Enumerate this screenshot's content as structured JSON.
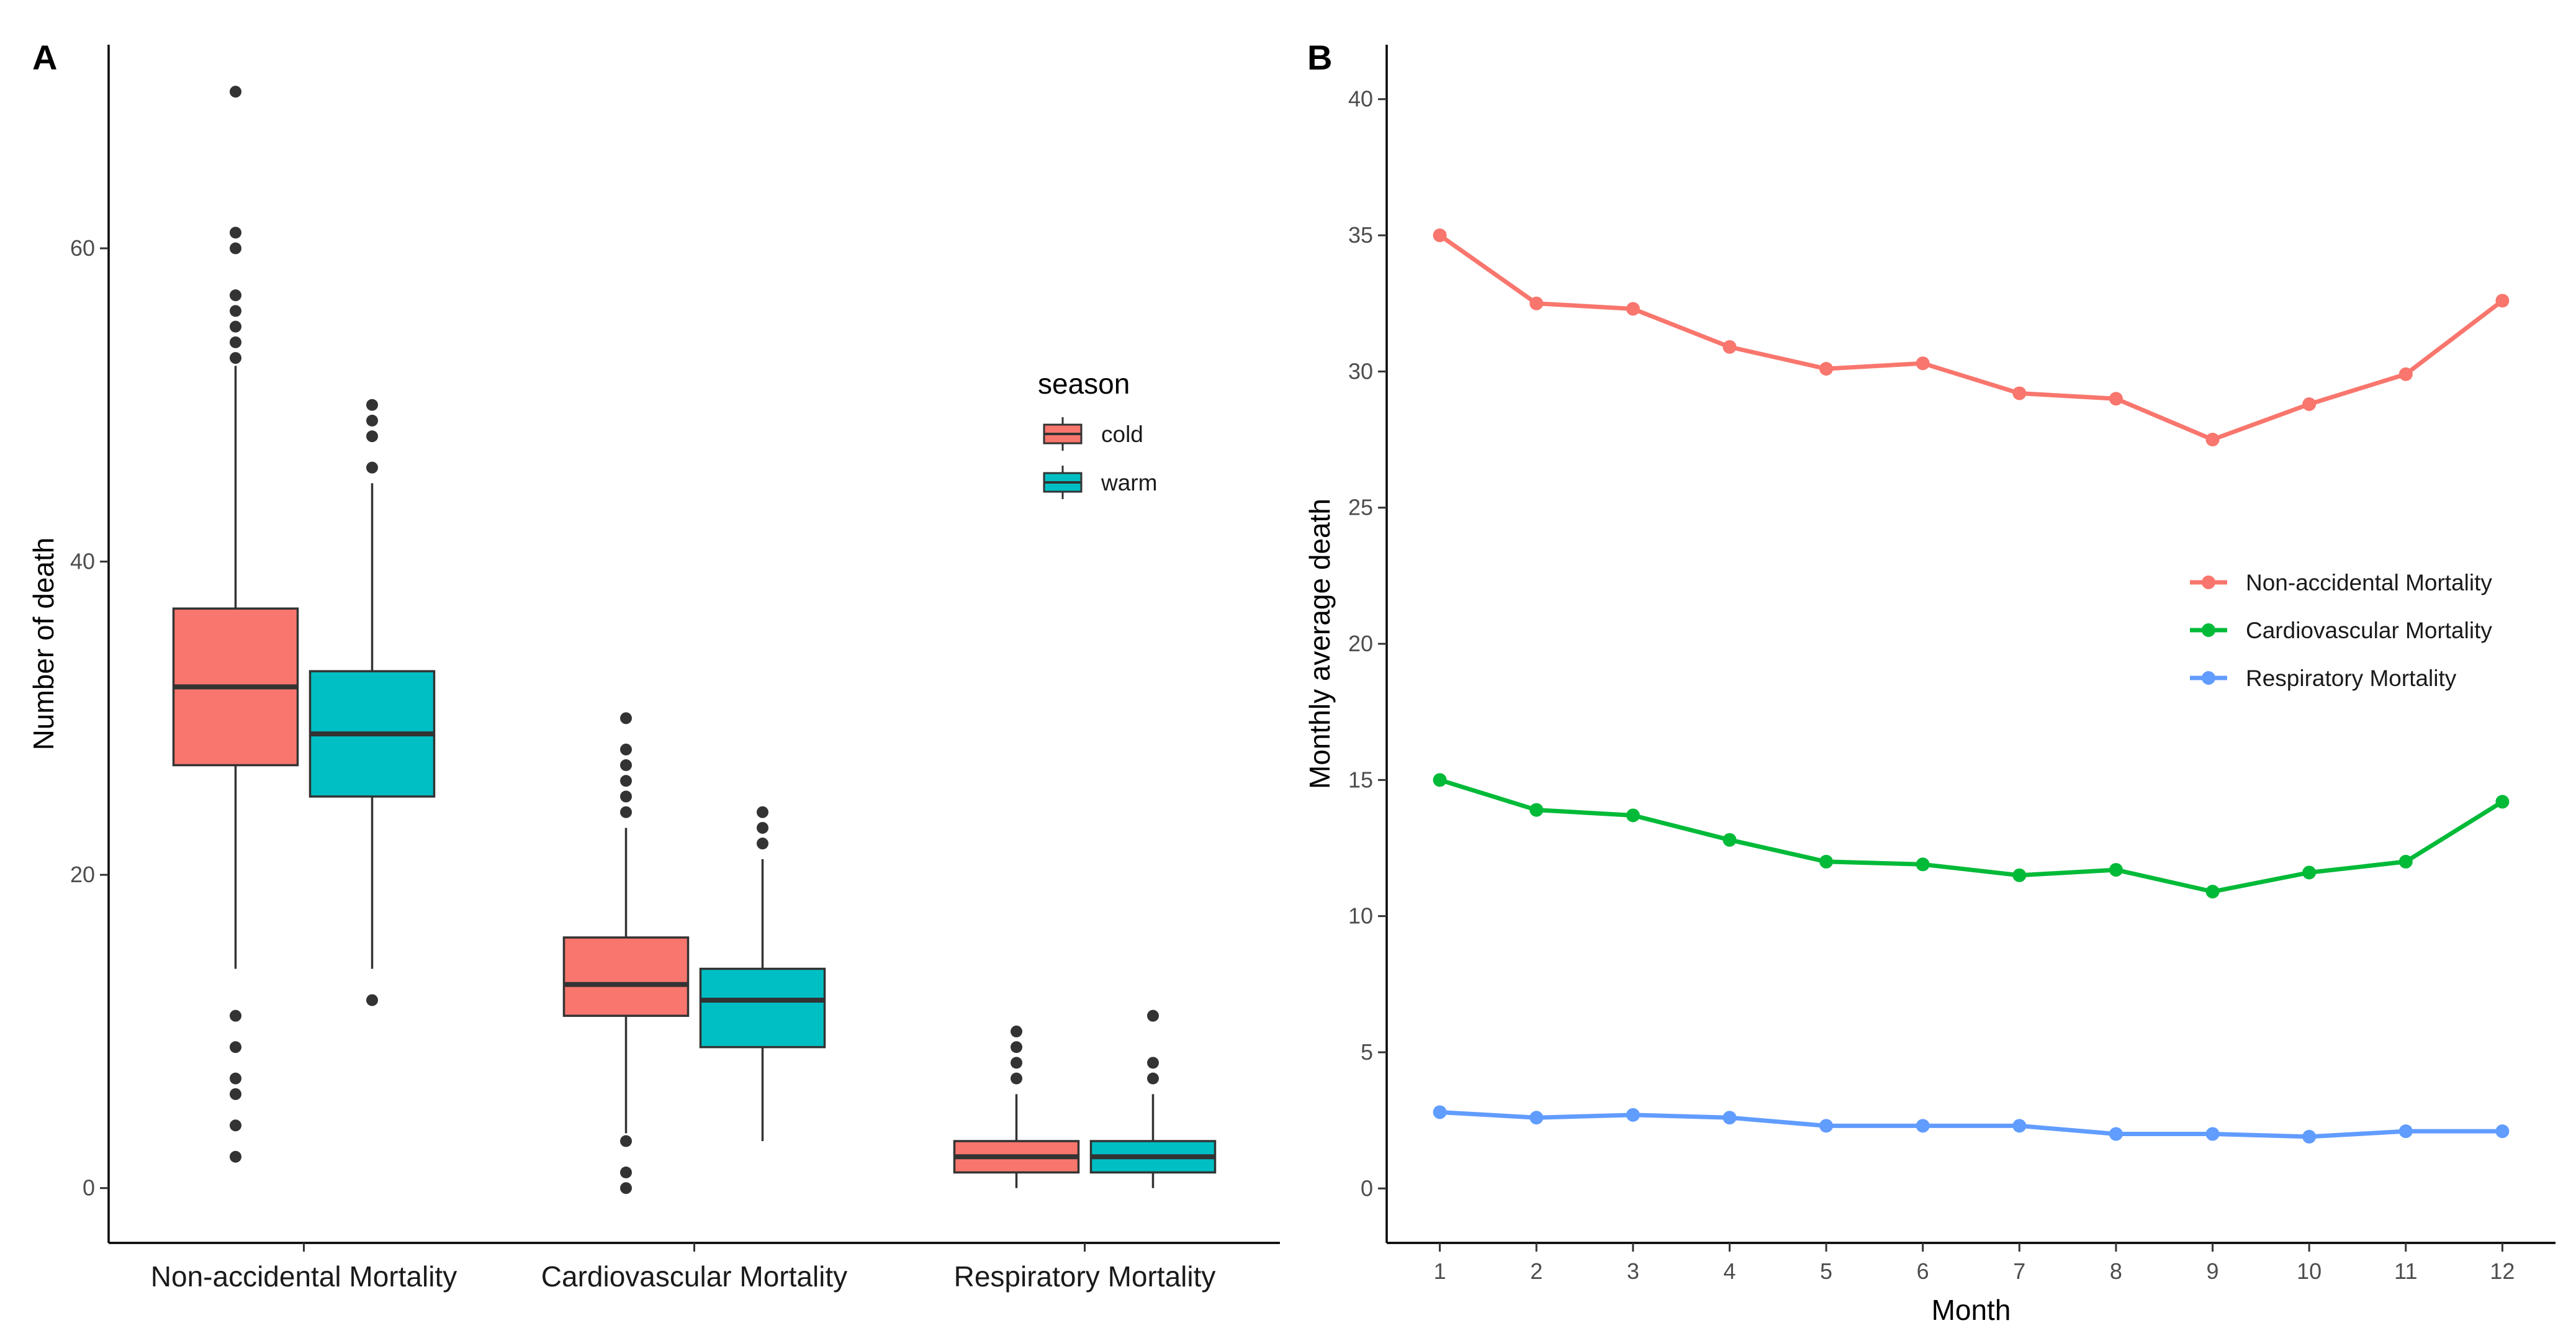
{
  "chart_data": [
    {
      "panel": "A",
      "type": "box",
      "title": "",
      "xlabel": "",
      "ylabel": "Number of death",
      "ylim": [
        -3.5,
        73
      ],
      "yticks": [
        0,
        20,
        40,
        60
      ],
      "grid": false,
      "legend": {
        "title": "season",
        "position": "right",
        "entries": [
          "cold",
          "warm"
        ]
      },
      "series_colors": {
        "cold": "#F8766D",
        "warm": "#00BFC4"
      },
      "categories": [
        "Non-accidental Mortality",
        "Cardiovascular Mortality",
        "Respiratory Mortality"
      ],
      "boxes": [
        {
          "category": "Non-accidental Mortality",
          "season": "cold",
          "q1": 27,
          "median": 32,
          "q3": 37,
          "whisker_low": 14,
          "whisker_high": 52.5,
          "outliers": [
            70,
            61,
            60,
            57,
            56,
            55,
            54,
            53,
            11,
            9,
            7,
            6,
            4,
            2
          ]
        },
        {
          "category": "Non-accidental Mortality",
          "season": "warm",
          "q1": 25,
          "median": 29,
          "q3": 33,
          "whisker_low": 14,
          "whisker_high": 45,
          "outliers": [
            50,
            49,
            48,
            46,
            12
          ]
        },
        {
          "category": "Cardiovascular Mortality",
          "season": "cold",
          "q1": 11,
          "median": 13,
          "q3": 16,
          "whisker_low": 3.5,
          "whisker_high": 23,
          "outliers": [
            30,
            28,
            27,
            26,
            25,
            24,
            3,
            1,
            0
          ]
        },
        {
          "category": "Cardiovascular Mortality",
          "season": "warm",
          "q1": 9,
          "median": 12,
          "q3": 14,
          "whisker_low": 3,
          "whisker_high": 21,
          "outliers": [
            24,
            23,
            22
          ]
        },
        {
          "category": "Respiratory Mortality",
          "season": "cold",
          "q1": 1,
          "median": 2,
          "q3": 3,
          "whisker_low": 0,
          "whisker_high": 6,
          "outliers": [
            10,
            9,
            8,
            7
          ]
        },
        {
          "category": "Respiratory Mortality",
          "season": "warm",
          "q1": 1,
          "median": 2,
          "q3": 3,
          "whisker_low": 0,
          "whisker_high": 6,
          "outliers": [
            11,
            8,
            7
          ]
        }
      ]
    },
    {
      "panel": "B",
      "type": "line",
      "title": "",
      "xlabel": "Month",
      "ylabel": "Monthly average death",
      "xlim": [
        0.45,
        12.55
      ],
      "ylim": [
        -2,
        42
      ],
      "yticks": [
        0,
        5,
        10,
        15,
        20,
        25,
        30,
        35,
        40
      ],
      "grid": false,
      "x": [
        1,
        2,
        3,
        4,
        5,
        6,
        7,
        8,
        9,
        10,
        11,
        12
      ],
      "legend": {
        "title": "",
        "position": "right",
        "entries": [
          "Non-accidental Mortality",
          "Cardiovascular Mortality",
          "Respiratory Mortality"
        ]
      },
      "series": [
        {
          "name": "Non-accidental Mortality",
          "color": "#F8766D",
          "values": [
            35.0,
            32.5,
            32.3,
            30.9,
            30.1,
            30.3,
            29.2,
            29.0,
            27.5,
            28.8,
            29.9,
            32.6
          ]
        },
        {
          "name": "Cardiovascular Mortality",
          "color": "#00BA38",
          "values": [
            15.0,
            13.9,
            13.7,
            12.8,
            12.0,
            11.9,
            11.5,
            11.7,
            10.9,
            11.6,
            12.0,
            14.2
          ]
        },
        {
          "name": "Respiratory Mortality",
          "color": "#619CFF",
          "values": [
            2.8,
            2.6,
            2.7,
            2.6,
            2.3,
            2.3,
            2.3,
            2.0,
            2.0,
            1.9,
            2.1,
            2.1
          ]
        }
      ]
    }
  ]
}
